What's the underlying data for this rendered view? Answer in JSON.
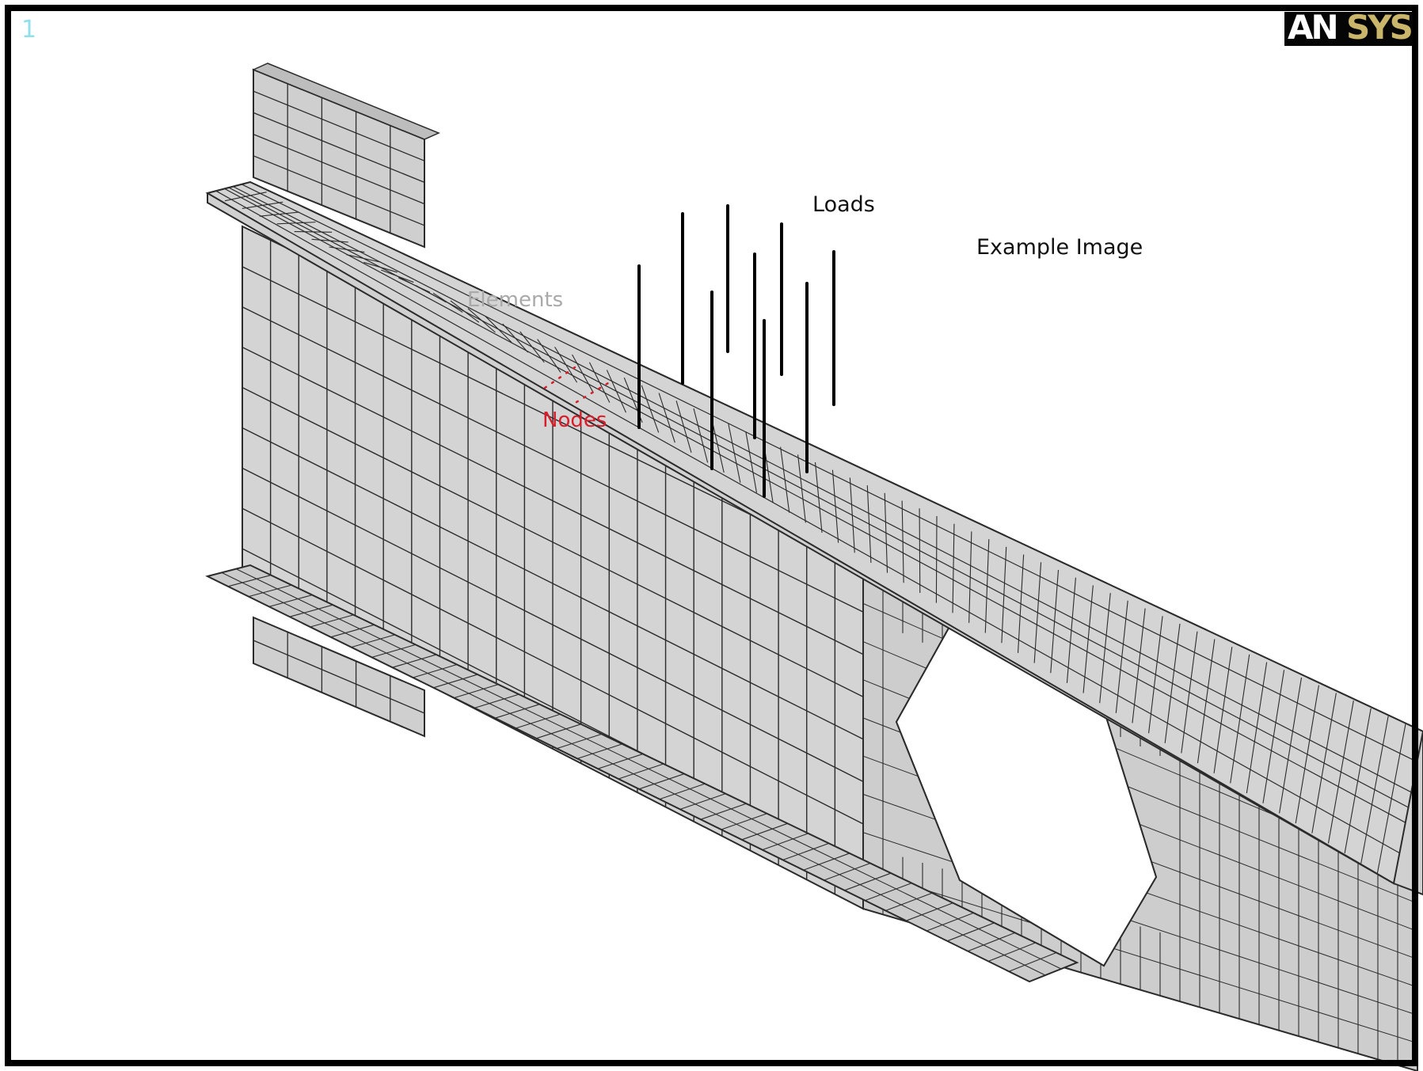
{
  "window": {
    "number": "1"
  },
  "logo": {
    "part1": "AN",
    "part2": "SYS"
  },
  "annotations": {
    "loads": "Loads",
    "example": "Example Image",
    "elements": "Elements",
    "nodes": "Nodes"
  },
  "colors": {
    "mesh_fill": "#d4d4d4",
    "mesh_fill_dark": "#bdbdbd",
    "mesh_lines": "#2b2b2b",
    "frame_border": "#000000",
    "load_arrows": "#000000",
    "node_markers": "#d81e2a",
    "window_number": "#8fe0ea",
    "logo_text": "#ffffff",
    "logo_accent": "#c9b66b"
  },
  "icons": {
    "logo": "ansys-logo"
  }
}
